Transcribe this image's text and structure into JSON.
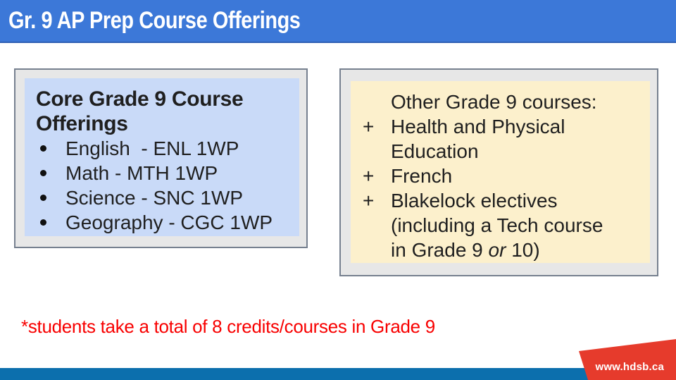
{
  "colors": {
    "header-blue": "#3c78d8",
    "header-blue-edge": "#2e5fb3",
    "footer-blue": "#0c6fad",
    "ribbon-red": "#e63b2c",
    "note-red": "#f80000",
    "box-outer-gray": "#e7e7e7",
    "box-border-gray": "#76808f",
    "left-inner-blue": "#c9daf8",
    "right-inner-yellow": "#fcf0cc",
    "text-dark": "#1f1f1f",
    "title-white": "#ffffff"
  },
  "slide": {
    "title": "Gr. 9 AP Prep Course Offerings",
    "left_box": {
      "title_lines": [
        "Core Grade 9 Course",
        "Offerings"
      ],
      "items": [
        "English  - ENL 1WP",
        "Math - MTH 1WP",
        "Science - SNC 1WP",
        "Geography - CGC 1WP"
      ]
    },
    "right_box": {
      "heading": "Other Grade 9 courses:",
      "items": [
        {
          "marker": "+",
          "lines": [
            [
              {
                "text": "Health and Physical"
              }
            ],
            [
              {
                "text": "Education"
              }
            ]
          ]
        },
        {
          "marker": "+",
          "lines": [
            [
              {
                "text": "French"
              }
            ]
          ]
        },
        {
          "marker": "+",
          "lines": [
            [
              {
                "text": "Blakelock electives"
              }
            ],
            [
              {
                "text": "(including a Tech course"
              }
            ],
            [
              {
                "text": "in Grade 9 "
              },
              {
                "text": "or",
                "italic": true
              },
              {
                "text": " 10)"
              }
            ]
          ]
        }
      ]
    },
    "footnote": "*students take a total of 8 credits/courses in Grade 9",
    "footer": {
      "url_label": "www.hdsb.ca"
    }
  }
}
